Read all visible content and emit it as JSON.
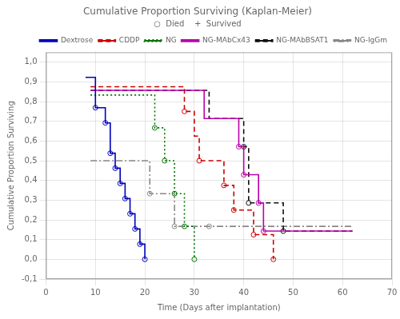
{
  "chart_data": {
    "type": "line",
    "title": "Cumulative Proportion Surviving (Kaplan-Meier)",
    "subtitle": "○  Died    +  Survived",
    "xlabel": "Time (Days after implantation)",
    "ylabel": "Cumulative Proportion Surviving",
    "xlim": [
      0,
      70
    ],
    "ylim": [
      -0.1,
      1.05
    ],
    "xticks": [
      0,
      10,
      20,
      30,
      40,
      50,
      60,
      70
    ],
    "yticks": [
      {
        "value": -0.1,
        "label": "-0,1"
      },
      {
        "value": 0.0,
        "label": "0,0"
      },
      {
        "value": 0.1,
        "label": "0,1"
      },
      {
        "value": 0.2,
        "label": "0,2"
      },
      {
        "value": 0.3,
        "label": "0,3"
      },
      {
        "value": 0.4,
        "label": "0,4"
      },
      {
        "value": 0.5,
        "label": "0,5"
      },
      {
        "value": 0.6,
        "label": "0,6"
      },
      {
        "value": 0.7,
        "label": "0,7"
      },
      {
        "value": 0.8,
        "label": "0,8"
      },
      {
        "value": 0.9,
        "label": "0,9"
      },
      {
        "value": 1.0,
        "label": "1,0"
      }
    ],
    "grid": true,
    "legend": "upper right",
    "series": [
      {
        "name": "Dextrose",
        "color": "#0000bb",
        "line_style": "solid",
        "marker": "circle",
        "x": [
          8,
          10,
          10,
          12,
          12,
          13,
          13,
          14,
          14,
          15,
          15,
          16,
          16,
          17,
          17,
          18,
          18,
          19,
          19,
          20,
          20
        ],
        "values": [
          0.923,
          0.923,
          0.769,
          0.769,
          0.692,
          0.692,
          0.538,
          0.538,
          0.462,
          0.462,
          0.385,
          0.385,
          0.308,
          0.308,
          0.231,
          0.231,
          0.154,
          0.154,
          0.077,
          0.077,
          0.0
        ],
        "died_x": [
          10,
          12,
          13,
          14,
          15,
          16,
          17,
          18,
          19,
          20
        ],
        "died_y": [
          0.769,
          0.692,
          0.538,
          0.462,
          0.385,
          0.308,
          0.231,
          0.154,
          0.077,
          0.0
        ]
      },
      {
        "name": "CDDP",
        "color": "#cc0000",
        "line_style": "dashed",
        "marker": "circle",
        "x": [
          9,
          28,
          28,
          30,
          30,
          31,
          31,
          36,
          36,
          38,
          38,
          42,
          42,
          46,
          46
        ],
        "values": [
          0.875,
          0.875,
          0.75,
          0.75,
          0.625,
          0.625,
          0.5,
          0.5,
          0.375,
          0.375,
          0.25,
          0.25,
          0.125,
          0.125,
          0.0
        ],
        "died_x": [
          28,
          31,
          36,
          38,
          42,
          46
        ],
        "died_y": [
          0.75,
          0.5,
          0.375,
          0.25,
          0.125,
          0.0
        ]
      },
      {
        "name": "NG",
        "color": "#007700",
        "line_style": "dotted",
        "marker": "circle",
        "x": [
          9,
          22,
          22,
          24,
          24,
          26,
          26,
          28,
          28,
          30,
          30
        ],
        "values": [
          0.833,
          0.833,
          0.667,
          0.667,
          0.5,
          0.5,
          0.333,
          0.333,
          0.167,
          0.167,
          0.0
        ],
        "died_x": [
          22,
          24,
          26,
          28,
          30
        ],
        "died_y": [
          0.667,
          0.5,
          0.333,
          0.167,
          0.0
        ]
      },
      {
        "name": "NG-MAbCx43",
        "color": "#bb00aa",
        "line_style": "solid",
        "marker": "circle",
        "x": [
          9,
          32,
          32,
          39,
          39,
          40,
          40,
          43,
          43,
          44,
          44,
          62
        ],
        "values": [
          0.857,
          0.857,
          0.714,
          0.714,
          0.571,
          0.571,
          0.429,
          0.429,
          0.286,
          0.286,
          0.143,
          0.143
        ],
        "died_x": [
          39,
          40,
          43,
          44
        ],
        "died_y": [
          0.571,
          0.429,
          0.286,
          0.143
        ]
      },
      {
        "name": "NG-MAbBSAT1",
        "color": "#111111",
        "line_style": "dashed",
        "marker": "circle",
        "x": [
          9,
          33,
          33,
          40,
          40,
          41,
          41,
          48,
          48,
          62
        ],
        "values": [
          0.857,
          0.857,
          0.714,
          0.714,
          0.571,
          0.571,
          0.286,
          0.286,
          0.143,
          0.143
        ],
        "died_x": [
          40,
          41,
          48
        ],
        "died_y": [
          0.571,
          0.286,
          0.143
        ]
      },
      {
        "name": "NG-IgGm",
        "color": "#888888",
        "line_style": "dashdot",
        "marker": "circle",
        "x": [
          9,
          21,
          21,
          26,
          26,
          33,
          62
        ],
        "values": [
          0.5,
          0.5,
          0.333,
          0.333,
          0.167,
          0.167,
          0.167
        ],
        "died_x": [
          21,
          26,
          33
        ],
        "died_y": [
          0.333,
          0.167,
          0.167
        ]
      }
    ]
  }
}
